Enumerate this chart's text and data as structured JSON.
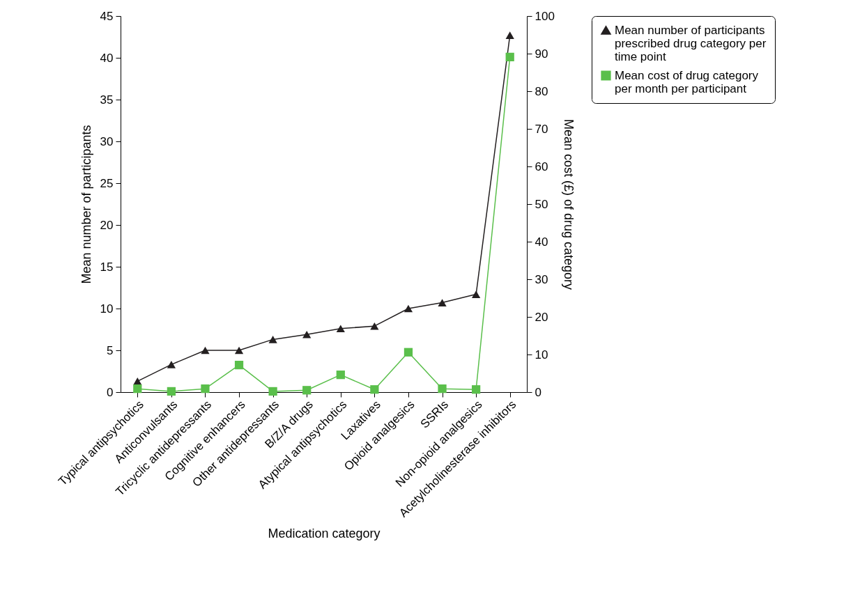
{
  "chart_data": {
    "type": "line",
    "xlabel": "Medication category",
    "ylabel": "Mean number of participants",
    "y2label": "Mean cost (£) of drug category",
    "categories": [
      "Typical antipsychotics",
      "Anticonvulsants",
      "Tricyclic antidepressants",
      "Cognitive enhancers",
      "Other antidepressants",
      "B/Z/A drugs",
      "Atypical antipsychotics",
      "Laxatives",
      "Opioid analgesics",
      "SSRIs",
      "Non-opioid analgesics",
      "Acetylcholinesterase inhibitors"
    ],
    "series": [
      {
        "name": "Mean number of participants prescribed drug category per time point",
        "color": "#231f20",
        "marker": "triangle",
        "values": [
          1.3,
          3.3,
          5.0,
          5.0,
          6.3,
          6.9,
          7.6,
          7.9,
          10.0,
          10.7,
          11.7,
          42.7
        ]
      },
      {
        "name": "Mean cost of drug category per month per participant",
        "color": "#5abf4b",
        "marker": "square",
        "axis": "y2",
        "values": [
          0.9,
          0.2,
          0.9,
          7.2,
          0.2,
          0.5,
          4.6,
          0.7,
          10.6,
          0.9,
          0.7,
          89.1
        ]
      }
    ],
    "ylim": [
      0,
      45
    ],
    "yticks": [
      0,
      5,
      10,
      15,
      20,
      25,
      30,
      35,
      40,
      45
    ],
    "y2lim": [
      0,
      100
    ],
    "y2ticks": [
      0,
      10,
      20,
      30,
      40,
      50,
      60,
      70,
      80,
      90,
      100
    ],
    "grid": false,
    "legend": "right",
    "line_style": "solid"
  }
}
